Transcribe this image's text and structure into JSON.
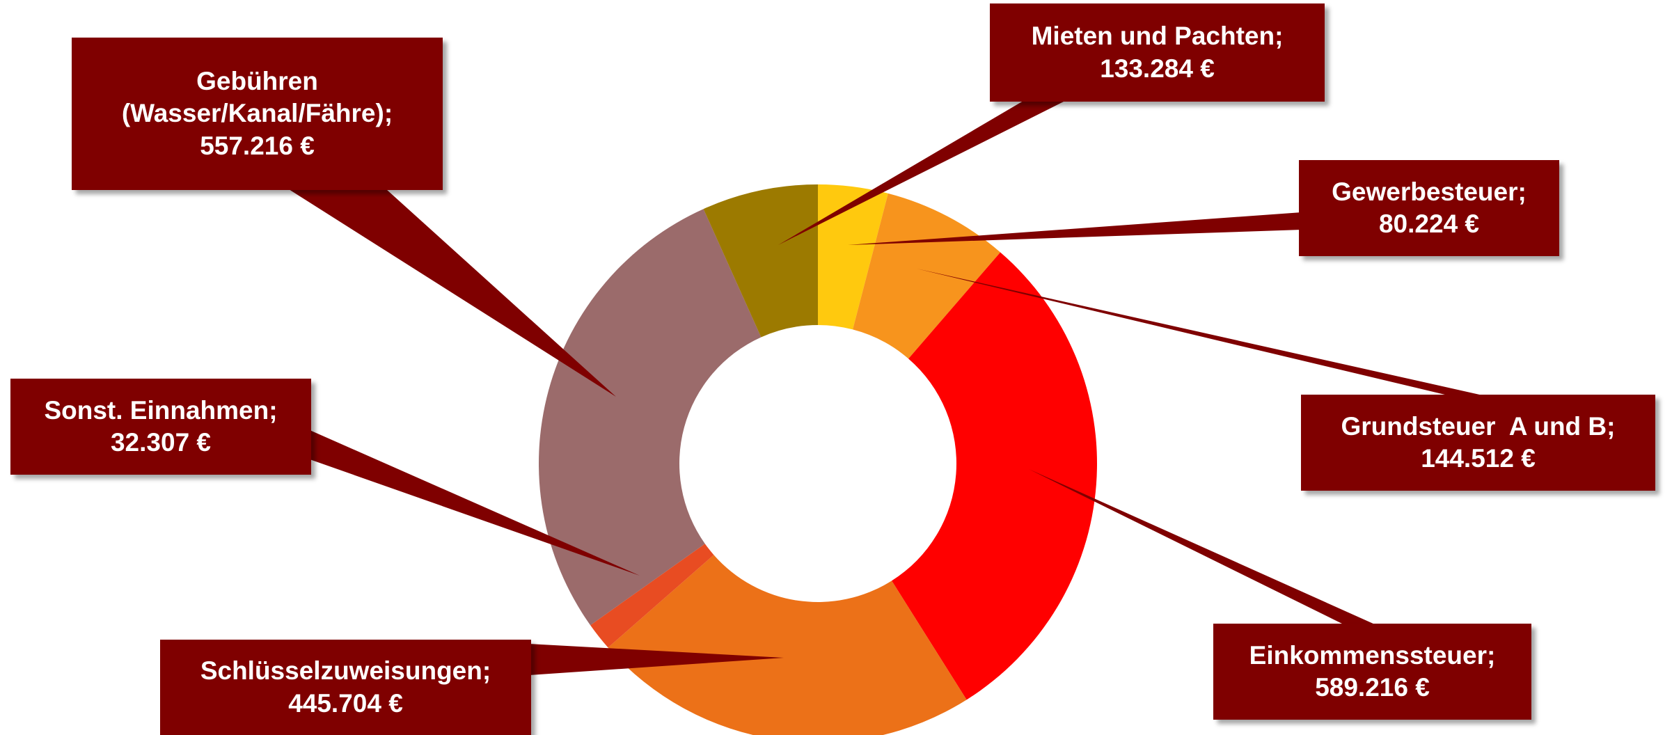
{
  "chart_data": {
    "type": "donut",
    "categories": [
      "Gewerbesteuer;",
      "Grundsteuer  A und B;",
      "Einkommenssteuer;",
      "Schlüsselzuweisungen;",
      "Sonst. Einnahmen;",
      "Gebühren (Wasser/Kanal/Fähre);",
      "Mieten und Pachten;"
    ],
    "values": [
      80224,
      144512,
      589216,
      445704,
      32307,
      557216,
      133284
    ],
    "value_labels": [
      "80.224 €",
      "144.512 €",
      "589.216 €",
      "445.704 €",
      "32.307 €",
      "557.216 €",
      "133.284 €"
    ],
    "colors": [
      "#FFC90E",
      "#F7941D",
      "#FF0000",
      "#EC7118",
      "#E84C22",
      "#9B6B6B",
      "#9C7A00"
    ]
  }
}
